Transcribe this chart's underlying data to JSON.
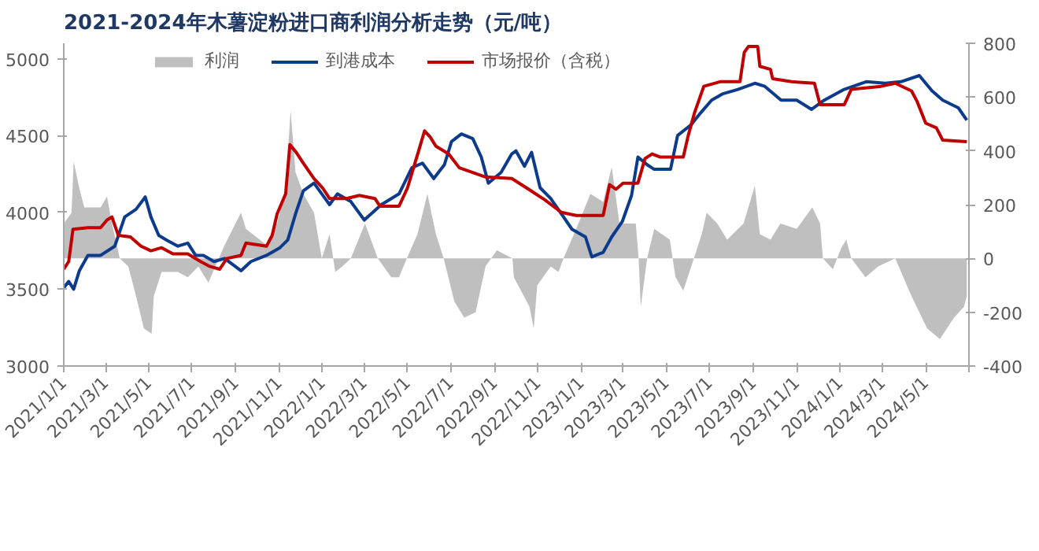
{
  "chart_data": {
    "type": "line",
    "title": "2021-2024年木薯淀粉进口商利润分析走势（元/吨）",
    "legend": "top",
    "grid": false,
    "xlim": [
      "2021-01-01",
      "2024-07-01"
    ],
    "xticks": [
      {
        "value": "2021-01-01",
        "label": "2021/1/1"
      },
      {
        "value": "2021-03-01",
        "label": "2021/3/1"
      },
      {
        "value": "2021-05-01",
        "label": "2021/5/1"
      },
      {
        "value": "2021-07-01",
        "label": "2021/7/1"
      },
      {
        "value": "2021-09-01",
        "label": "2021/9/1"
      },
      {
        "value": "2021-11-01",
        "label": "2021/11/1"
      },
      {
        "value": "2022-01-01",
        "label": "2022/1/1"
      },
      {
        "value": "2022-03-01",
        "label": "2022/3/1"
      },
      {
        "value": "2022-05-01",
        "label": "2022/5/1"
      },
      {
        "value": "2022-07-01",
        "label": "2022/7/1"
      },
      {
        "value": "2022-09-01",
        "label": "2022/9/1"
      },
      {
        "value": "2022-11-01",
        "label": "2022/11/1"
      },
      {
        "value": "2023-01-01",
        "label": "2023/1/1"
      },
      {
        "value": "2023-03-01",
        "label": "2023/3/1"
      },
      {
        "value": "2023-05-01",
        "label": "2023/5/1"
      },
      {
        "value": "2023-07-01",
        "label": "2023/7/1"
      },
      {
        "value": "2023-09-01",
        "label": "2023/9/1"
      },
      {
        "value": "2023-11-01",
        "label": "2023/11/1"
      },
      {
        "value": "2024-01-01",
        "label": "2024/1/1"
      },
      {
        "value": "2024-03-01",
        "label": "2024/3/1"
      },
      {
        "value": "2024-05-01",
        "label": "2024/5/1"
      },
      {
        "value": "2024-07-01",
        "label": null
      }
    ],
    "ylim": [
      3000,
      5100
    ],
    "yticks": [
      3000,
      3500,
      4000,
      4500,
      5000
    ],
    "y2lim": [
      -400,
      800
    ],
    "y2ticks": [
      -400,
      -200,
      0,
      200,
      400,
      600,
      800
    ],
    "series": [
      {
        "name": "利润",
        "type": "area",
        "axis": "y2",
        "color": "#bfbfbf",
        "x": [
          "2021-01-01",
          "2021-01-12",
          "2021-01-15",
          "2021-01-23",
          "2021-01-30",
          "2021-02-22",
          "2021-03-03",
          "2021-03-10",
          "2021-03-21",
          "2021-04-02",
          "2021-04-13",
          "2021-04-24",
          "2021-05-05",
          "2021-05-08",
          "2021-05-19",
          "2021-06-11",
          "2021-06-25",
          "2021-07-10",
          "2021-07-24",
          "2021-08-16",
          "2021-09-08",
          "2021-09-15",
          "2021-10-14",
          "2021-10-29",
          "2021-11-10",
          "2021-11-17",
          "2021-11-24",
          "2021-12-05",
          "2021-12-20",
          "2021-12-31",
          "2022-01-11",
          "2022-01-19",
          "2022-01-29",
          "2022-02-10",
          "2022-03-02",
          "2022-03-20",
          "2022-04-08",
          "2022-04-19",
          "2022-04-30",
          "2022-05-15",
          "2022-05-29",
          "2022-06-10",
          "2022-06-21",
          "2022-07-06",
          "2022-07-20",
          "2022-08-05",
          "2022-08-19",
          "2022-09-04",
          "2022-09-26",
          "2022-09-28",
          "2022-10-20",
          "2022-10-26",
          "2022-10-31",
          "2022-11-19",
          "2022-11-30",
          "2022-12-07",
          "2022-12-25",
          "2023-01-14",
          "2023-02-01",
          "2023-02-13",
          "2023-02-24",
          "2023-03-19",
          "2023-03-23",
          "2023-03-26",
          "2023-04-04",
          "2023-04-14",
          "2023-05-06",
          "2023-05-14",
          "2023-05-25",
          "2023-06-09",
          "2023-06-20",
          "2023-06-27",
          "2023-07-12",
          "2023-07-26",
          "2023-08-18",
          "2023-09-03",
          "2023-09-10",
          "2023-09-25",
          "2023-10-09",
          "2023-11-01",
          "2023-11-23",
          "2023-12-04",
          "2023-12-08",
          "2023-12-22",
          "2024-01-03",
          "2024-01-10",
          "2024-01-17",
          "2024-02-06",
          "2024-02-24",
          "2024-03-19",
          "2024-04-11",
          "2024-05-03",
          "2024-05-21",
          "2024-06-10",
          "2024-06-24",
          "2024-06-28"
        ],
        "values": [
          130,
          170,
          360,
          260,
          190,
          190,
          230,
          130,
          0,
          -30,
          -140,
          -260,
          -280,
          -140,
          -50,
          -50,
          -70,
          -30,
          -90,
          50,
          170,
          110,
          50,
          130,
          260,
          550,
          320,
          240,
          170,
          0,
          90,
          -50,
          -30,
          0,
          130,
          0,
          -70,
          -70,
          0,
          90,
          240,
          90,
          0,
          -160,
          -220,
          -200,
          -30,
          30,
          0,
          -70,
          -180,
          -260,
          -100,
          -30,
          -50,
          0,
          110,
          240,
          210,
          340,
          130,
          130,
          0,
          -180,
          0,
          110,
          70,
          -70,
          -120,
          0,
          90,
          170,
          130,
          70,
          130,
          270,
          90,
          70,
          130,
          110,
          190,
          130,
          0,
          -40,
          40,
          70,
          0,
          -70,
          -30,
          0,
          -140,
          -260,
          -300,
          -220,
          -180,
          -140
        ]
      },
      {
        "name": "到港成本",
        "type": "line",
        "color": "#0d3b8c",
        "x": [
          "2021-01-01",
          "2021-01-08",
          "2021-01-15",
          "2021-01-23",
          "2021-02-04",
          "2021-02-22",
          "2021-03-14",
          "2021-03-28",
          "2021-04-13",
          "2021-04-26",
          "2021-05-04",
          "2021-05-15",
          "2021-05-26",
          "2021-06-11",
          "2021-06-25",
          "2021-07-06",
          "2021-07-17",
          "2021-08-01",
          "2021-08-16",
          "2021-09-08",
          "2021-09-22",
          "2021-10-14",
          "2021-11-02",
          "2021-11-13",
          "2021-11-24",
          "2021-12-05",
          "2021-12-20",
          "2022-01-11",
          "2022-01-22",
          "2022-02-10",
          "2022-03-01",
          "2022-03-25",
          "2022-04-19",
          "2022-05-07",
          "2022-05-22",
          "2022-06-07",
          "2022-06-22",
          "2022-07-02",
          "2022-07-16",
          "2022-08-01",
          "2022-08-13",
          "2022-08-23",
          "2022-09-10",
          "2022-09-25",
          "2022-10-01",
          "2022-10-13",
          "2022-10-23",
          "2022-11-04",
          "2022-11-19",
          "2022-12-04",
          "2022-12-19",
          "2023-01-07",
          "2023-01-16",
          "2023-02-01",
          "2023-02-13",
          "2023-02-28",
          "2023-03-13",
          "2023-03-22",
          "2023-04-04",
          "2023-04-14",
          "2023-05-07",
          "2023-05-17",
          "2023-06-05",
          "2023-06-19",
          "2023-07-04",
          "2023-07-19",
          "2023-08-10",
          "2023-09-03",
          "2023-09-17",
          "2023-10-10",
          "2023-11-01",
          "2023-11-22",
          "2023-12-10",
          "2024-01-07",
          "2024-02-07",
          "2024-03-05",
          "2024-03-27",
          "2024-04-22",
          "2024-05-10",
          "2024-05-25",
          "2024-06-16",
          "2024-06-28"
        ],
        "values": [
          3510,
          3550,
          3500,
          3620,
          3720,
          3720,
          3780,
          3970,
          4020,
          4100,
          3970,
          3850,
          3820,
          3780,
          3800,
          3720,
          3720,
          3680,
          3700,
          3620,
          3680,
          3720,
          3770,
          3820,
          3990,
          4140,
          4190,
          4050,
          4120,
          4070,
          3950,
          4050,
          4120,
          4290,
          4320,
          4220,
          4310,
          4460,
          4510,
          4480,
          4360,
          4190,
          4260,
          4380,
          4400,
          4300,
          4390,
          4160,
          4090,
          3990,
          3890,
          3840,
          3710,
          3740,
          3840,
          3940,
          4110,
          4360,
          4310,
          4280,
          4280,
          4500,
          4570,
          4650,
          4730,
          4770,
          4800,
          4840,
          4820,
          4730,
          4730,
          4670,
          4730,
          4800,
          4850,
          4840,
          4850,
          4890,
          4790,
          4730,
          4680,
          4600
        ]
      },
      {
        "name": "市场报价（含税）",
        "type": "line",
        "color": "#c00000",
        "x": [
          "2021-01-01",
          "2021-01-08",
          "2021-01-14",
          "2021-02-04",
          "2021-02-22",
          "2021-03-03",
          "2021-03-10",
          "2021-03-19",
          "2021-04-05",
          "2021-04-20",
          "2021-05-04",
          "2021-05-19",
          "2021-06-04",
          "2021-06-25",
          "2021-07-13",
          "2021-07-25",
          "2021-08-09",
          "2021-08-19",
          "2021-09-08",
          "2021-09-15",
          "2021-10-14",
          "2021-10-22",
          "2021-10-29",
          "2021-11-10",
          "2021-11-16",
          "2021-11-25",
          "2021-12-05",
          "2021-12-20",
          "2022-01-01",
          "2022-01-11",
          "2022-02-04",
          "2022-02-22",
          "2022-03-16",
          "2022-03-23",
          "2022-04-19",
          "2022-05-01",
          "2022-05-16",
          "2022-05-25",
          "2022-06-02",
          "2022-06-10",
          "2022-06-28",
          "2022-07-13",
          "2022-08-19",
          "2022-09-25",
          "2022-10-19",
          "2022-11-11",
          "2022-12-04",
          "2022-12-25",
          "2023-02-01",
          "2023-02-10",
          "2023-02-19",
          "2023-03-01",
          "2023-03-22",
          "2023-04-01",
          "2023-04-11",
          "2023-04-22",
          "2023-05-25",
          "2023-06-01",
          "2023-06-10",
          "2023-06-23",
          "2023-07-16",
          "2023-08-13",
          "2023-08-19",
          "2023-08-25",
          "2023-09-07",
          "2023-09-10",
          "2023-09-25",
          "2023-09-28",
          "2023-10-25",
          "2023-11-26",
          "2023-12-04",
          "2024-01-07",
          "2024-01-17",
          "2024-02-28",
          "2024-03-19",
          "2024-04-11",
          "2024-04-19",
          "2024-05-01",
          "2024-05-16",
          "2024-05-25",
          "2024-06-28"
        ],
        "values": [
          3630,
          3680,
          3890,
          3900,
          3900,
          3950,
          3970,
          3850,
          3840,
          3780,
          3750,
          3770,
          3730,
          3730,
          3680,
          3650,
          3630,
          3700,
          3720,
          3800,
          3780,
          3850,
          3990,
          4120,
          4440,
          4390,
          4320,
          4220,
          4160,
          4090,
          4090,
          4110,
          4090,
          4040,
          4040,
          4160,
          4390,
          4530,
          4490,
          4430,
          4380,
          4290,
          4230,
          4220,
          4150,
          4080,
          4000,
          3980,
          3980,
          4180,
          4150,
          4190,
          4190,
          4350,
          4380,
          4360,
          4360,
          4500,
          4650,
          4820,
          4850,
          4850,
          5040,
          5080,
          5080,
          4950,
          4930,
          4870,
          4850,
          4840,
          4700,
          4700,
          4800,
          4820,
          4840,
          4790,
          4720,
          4580,
          4550,
          4470,
          4460
        ]
      }
    ]
  }
}
